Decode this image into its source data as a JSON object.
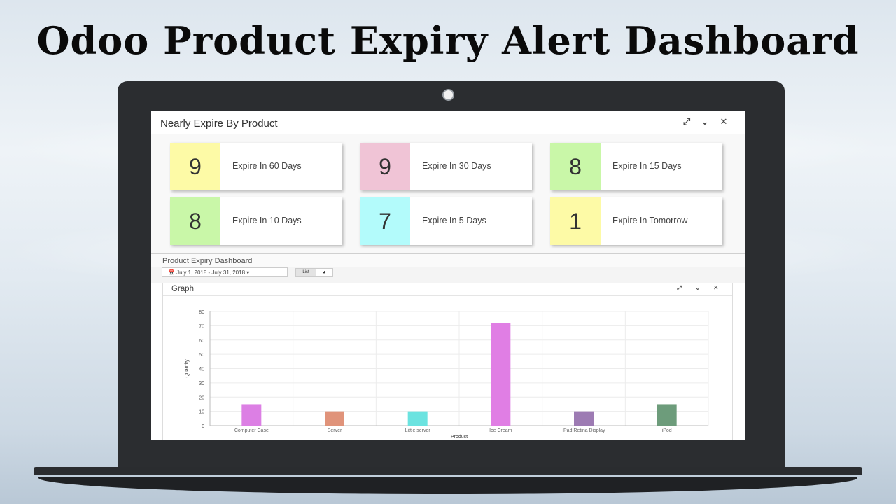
{
  "headline": "Odoo Product Expiry Alert Dashboard",
  "panel": {
    "title": "Nearly Expire By Product",
    "icons": [
      "expand-icon",
      "chevron-down-icon",
      "close-icon"
    ]
  },
  "cards": [
    {
      "count": "9",
      "label": "Expire In 60 Days",
      "color": "#fdfaa6"
    },
    {
      "count": "9",
      "label": "Expire In 30 Days",
      "color": "#f0c4d6"
    },
    {
      "count": "8",
      "label": "Expire In 15 Days",
      "color": "#c9f7a8"
    },
    {
      "count": "8",
      "label": "Expire In 10 Days",
      "color": "#c9f7a8"
    },
    {
      "count": "7",
      "label": "Expire In 5 Days",
      "color": "#b3fbfb"
    },
    {
      "count": "1",
      "label": "Expire In Tomorrow",
      "color": "#fdfaa6"
    }
  ],
  "dashboard": {
    "title": "Product Expiry Dashboard",
    "date_range": "📅 July 1, 2018 - July 31, 2018 ▾",
    "view_list": "List",
    "view_chart": "◕"
  },
  "graph": {
    "title": "Graph"
  },
  "chart_data": {
    "type": "bar",
    "categories": [
      "Computer Case",
      "Server",
      "Little server",
      "Ice Cream",
      "iPad Retina Display",
      "iPod"
    ],
    "values": [
      15,
      10,
      10,
      72,
      10,
      15
    ],
    "colors": [
      "#dc7fe4",
      "#e0937a",
      "#6be3e0",
      "#e07ee4",
      "#9d7bb3",
      "#6d9c7b"
    ],
    "xlabel": "Product",
    "ylabel": "Quantity",
    "ylim": [
      0,
      80
    ],
    "yticks": [
      0,
      10,
      20,
      30,
      40,
      50,
      60,
      70,
      80
    ],
    "grid": true
  }
}
